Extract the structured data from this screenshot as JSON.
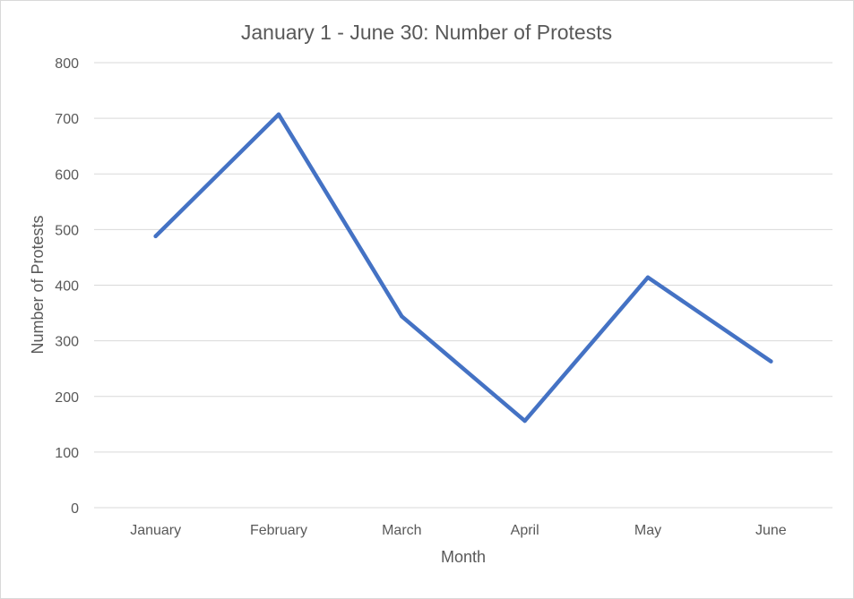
{
  "chart_data": {
    "type": "line",
    "title": "January 1 - June 30: Number of Protests",
    "xlabel": "Month",
    "ylabel": "Number of Protests",
    "categories": [
      "January",
      "February",
      "March",
      "April",
      "May",
      "June"
    ],
    "series": [
      {
        "values": [
          488,
          707,
          344,
          156,
          414,
          263
        ]
      }
    ],
    "ylim": [
      0,
      800
    ],
    "yticks": [
      0,
      100,
      200,
      300,
      400,
      500,
      600,
      700,
      800
    ],
    "grid": true,
    "legend": "none",
    "colors": {
      "line": "#4472c4",
      "grid": "#d9d9d9",
      "text": "#595959"
    }
  }
}
